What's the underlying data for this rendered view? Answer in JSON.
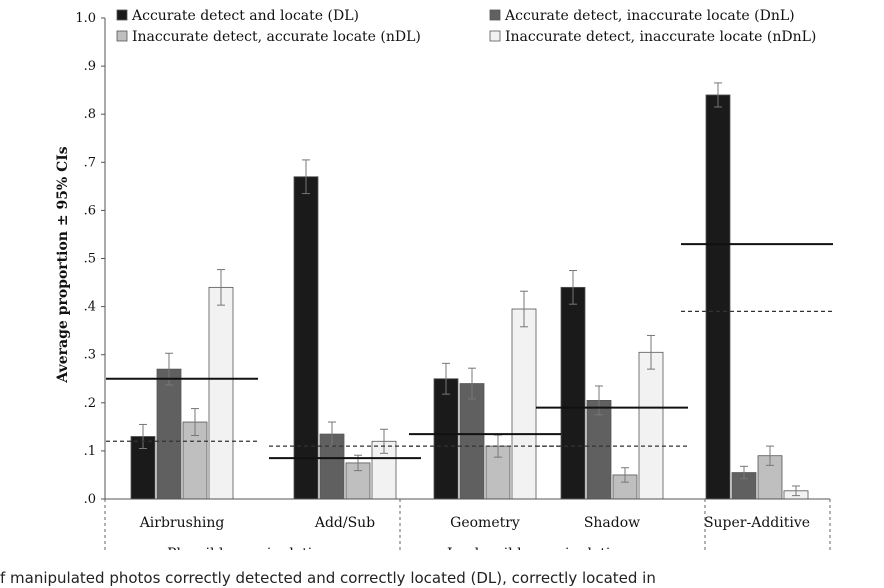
{
  "chart_data": {
    "type": "bar",
    "title": "",
    "xlabel": "",
    "ylabel": "Average proportion ± 95% CIs",
    "ylim": [
      0,
      1.0
    ],
    "yticks": [
      {
        "value": 0.0,
        "label": ".0"
      },
      {
        "value": 0.1,
        "label": ".1"
      },
      {
        "value": 0.2,
        "label": ".2"
      },
      {
        "value": 0.3,
        "label": ".3"
      },
      {
        "value": 0.4,
        "label": ".4"
      },
      {
        "value": 0.5,
        "label": ".5"
      },
      {
        "value": 0.6,
        "label": ".6"
      },
      {
        "value": 0.7,
        "label": ".7"
      },
      {
        "value": 0.8,
        "label": ".8"
      },
      {
        "value": 0.9,
        "label": ".9"
      },
      {
        "value": 1.0,
        "label": "1.0"
      }
    ],
    "categories": [
      "Airbrushing",
      "Add/Sub",
      "Geometry",
      "Shadow",
      "Super-Additive"
    ],
    "groups": [
      {
        "label": "Plausible manipulations",
        "categories": [
          "Airbrushing",
          "Add/Sub"
        ]
      },
      {
        "label": "Implausible manipulations",
        "categories": [
          "Geometry",
          "Shadow"
        ]
      },
      {
        "label": "",
        "categories": [
          "Super-Additive"
        ]
      }
    ],
    "series": [
      {
        "name": "Accurate detect and locate (DL)",
        "color": "#1a1a1a",
        "values": [
          0.13,
          0.67,
          0.25,
          0.44,
          0.84
        ],
        "ci": [
          0.025,
          0.035,
          0.032,
          0.035,
          0.025
        ]
      },
      {
        "name": "Accurate detect, inaccurate locate (DnL)",
        "color": "#606060",
        "values": [
          0.27,
          0.135,
          0.24,
          0.205,
          0.055
        ],
        "ci": [
          0.033,
          0.025,
          0.032,
          0.03,
          0.013
        ]
      },
      {
        "name": "Inaccurate detect, accurate locate (nDL)",
        "color": "#bfbfbf",
        "values": [
          0.16,
          0.075,
          0.11,
          0.05,
          0.09
        ],
        "ci": [
          0.028,
          0.016,
          0.023,
          0.015,
          0.02
        ]
      },
      {
        "name": "Inaccurate detect, inaccurate locate (nDnL)",
        "color": "#f2f2f2",
        "values": [
          0.44,
          0.12,
          0.395,
          0.305,
          0.017
        ],
        "ci": [
          0.037,
          0.025,
          0.037,
          0.035,
          0.01
        ]
      }
    ],
    "reference_lines": {
      "solid": [
        0.25,
        0.085,
        0.135,
        0.19,
        0.53
      ],
      "dashed": [
        0.12,
        0.11,
        0.11,
        0.11,
        0.39
      ]
    },
    "legend_position": "top",
    "grid": false
  },
  "caption": "f manipulated photos correctly detected and correctly located (DL), correctly located in"
}
